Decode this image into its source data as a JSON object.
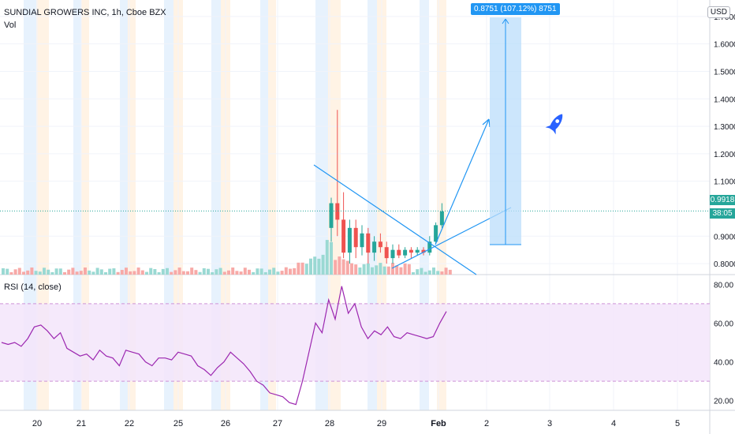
{
  "header": {
    "symbol_line": "SUNDIAL GROWERS INC, 1h, Cboe BZX",
    "vol_label": "Vol",
    "currency": "USD"
  },
  "rsi": {
    "label": "RSI (14, close)"
  },
  "measure": {
    "text": "0.8751 (107.12%) 8751"
  },
  "price_tags": {
    "last_price": "0.9918",
    "countdown": "38:05"
  },
  "colors": {
    "up": "#26a69a",
    "down": "#ef5350",
    "up_vol": "#9ad9d3",
    "down_vol": "#f7a9a7",
    "accent": "#2196f3",
    "rsi_line": "#9c27b0",
    "rsi_band": "#f3e5fa",
    "session_blue": "#e3f0fd",
    "session_orange": "#fff1e0"
  },
  "chart_data": [
    {
      "type": "line",
      "name": "price",
      "x_ticks": [
        "20",
        "21",
        "22",
        "25",
        "26",
        "27",
        "28",
        "29",
        "Feb",
        "2",
        "3",
        "4",
        "5"
      ],
      "y_ticks": [
        "0.8000",
        "0.9000",
        "1.1000",
        "1.2000",
        "1.3000",
        "1.4000",
        "1.5000",
        "1.6000",
        "1.7000"
      ],
      "ylim": [
        0.76,
        1.76
      ],
      "last_price": 0.9918,
      "candles": [
        {
          "o": 0.93,
          "h": 1.04,
          "l": 0.88,
          "c": 1.02
        },
        {
          "o": 1.02,
          "h": 1.36,
          "l": 0.9,
          "c": 0.96
        },
        {
          "o": 0.96,
          "h": 1.06,
          "l": 0.82,
          "c": 0.84
        },
        {
          "o": 0.84,
          "h": 0.96,
          "l": 0.8,
          "c": 0.93
        },
        {
          "o": 0.93,
          "h": 0.96,
          "l": 0.82,
          "c": 0.86
        },
        {
          "o": 0.86,
          "h": 0.94,
          "l": 0.83,
          "c": 0.91
        },
        {
          "o": 0.91,
          "h": 0.93,
          "l": 0.8,
          "c": 0.84
        },
        {
          "o": 0.84,
          "h": 0.9,
          "l": 0.81,
          "c": 0.88
        },
        {
          "o": 0.88,
          "h": 0.91,
          "l": 0.84,
          "c": 0.86
        },
        {
          "o": 0.86,
          "h": 0.88,
          "l": 0.8,
          "c": 0.82
        },
        {
          "o": 0.82,
          "h": 0.87,
          "l": 0.8,
          "c": 0.85
        },
        {
          "o": 0.85,
          "h": 0.87,
          "l": 0.82,
          "c": 0.83
        },
        {
          "o": 0.83,
          "h": 0.86,
          "l": 0.82,
          "c": 0.85
        },
        {
          "o": 0.85,
          "h": 0.86,
          "l": 0.82,
          "c": 0.84
        },
        {
          "o": 0.84,
          "h": 0.86,
          "l": 0.83,
          "c": 0.85
        },
        {
          "o": 0.85,
          "h": 0.86,
          "l": 0.83,
          "c": 0.84
        },
        {
          "o": 0.84,
          "h": 0.9,
          "l": 0.83,
          "c": 0.88
        },
        {
          "o": 0.88,
          "h": 0.95,
          "l": 0.87,
          "c": 0.94
        },
        {
          "o": 0.94,
          "h": 1.02,
          "l": 0.93,
          "c": 0.99
        }
      ],
      "annotations": [
        "falling trendline",
        "rising trendline",
        "projection arrow",
        "price range measure",
        "rocket"
      ]
    },
    {
      "type": "line",
      "name": "rsi",
      "ylim": [
        15,
        85
      ],
      "y_ticks": [
        "20.00",
        "40.00",
        "60.00",
        "80.00"
      ],
      "bands": [
        30,
        70
      ],
      "values": [
        50,
        49,
        50,
        48,
        52,
        58,
        59,
        56,
        52,
        55,
        47,
        45,
        43,
        44,
        41,
        46,
        43,
        42,
        38,
        46,
        45,
        44,
        40,
        38,
        42,
        42,
        41,
        45,
        44,
        43,
        38,
        36,
        33,
        37,
        40,
        45,
        42,
        39,
        35,
        30,
        28,
        24,
        23,
        22,
        19,
        18,
        30,
        45,
        60,
        55,
        72,
        62,
        79,
        65,
        70,
        58,
        52,
        56,
        54,
        58,
        53,
        52,
        55,
        54,
        53,
        52,
        53,
        60,
        66
      ]
    }
  ]
}
